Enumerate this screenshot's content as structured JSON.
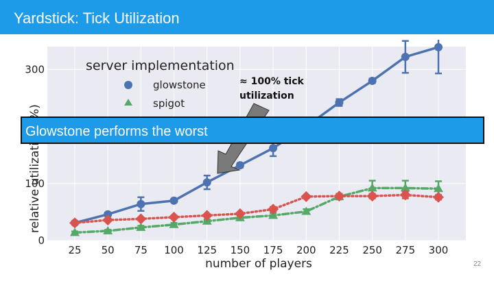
{
  "slide": {
    "title": "Yardstick: Tick Utilization",
    "callout": "Glowstone performs the worst",
    "page_number": "22"
  },
  "colors": {
    "header": "#1e9be8",
    "glowstone": "#4c72b0",
    "spigot": "#55a868",
    "third_series": "#d9534f"
  },
  "chart_data": {
    "type": "line",
    "xlabel": "number of players",
    "ylabel": "relative utilization (%)",
    "x": [
      25,
      50,
      75,
      100,
      125,
      150,
      175,
      200,
      225,
      250,
      275,
      300
    ],
    "ylim": [
      0,
      340
    ],
    "yticks": [
      0,
      100,
      300
    ],
    "grid": true,
    "legend": {
      "title": "server implementation",
      "placement": "top-left"
    },
    "annotation": {
      "text": "≈ 100% tick utilization",
      "line1": "≈ 100% tick",
      "line2": "utilization",
      "points_to_x": 125
    },
    "series": [
      {
        "name": "glowstone",
        "color": "#4c72b0",
        "marker": "circle",
        "style": "solid",
        "values": [
          31,
          46,
          64,
          70,
          102,
          132,
          162,
          200,
          242,
          280,
          322,
          339
        ],
        "error": [
          3,
          3,
          12,
          3,
          12,
          4,
          14,
          5,
          6,
          4,
          28,
          46
        ]
      },
      {
        "name": "spigot",
        "color": "#55a868",
        "marker": "triangle",
        "style": "dashdot",
        "values": [
          14,
          17,
          23,
          28,
          34,
          40,
          44,
          51,
          77,
          92,
          92,
          91
        ],
        "error": [
          2,
          2,
          3,
          3,
          3,
          3,
          4,
          4,
          5,
          13,
          13,
          13
        ]
      },
      {
        "name": "",
        "color": "#d9534f",
        "marker": "diamond",
        "style": "dotted",
        "values": [
          31,
          36,
          38,
          41,
          44,
          47,
          55,
          77,
          78,
          78,
          80,
          76
        ],
        "error": [
          2,
          2,
          2,
          2,
          2,
          2,
          4,
          2,
          4,
          4,
          6,
          4
        ]
      }
    ]
  }
}
